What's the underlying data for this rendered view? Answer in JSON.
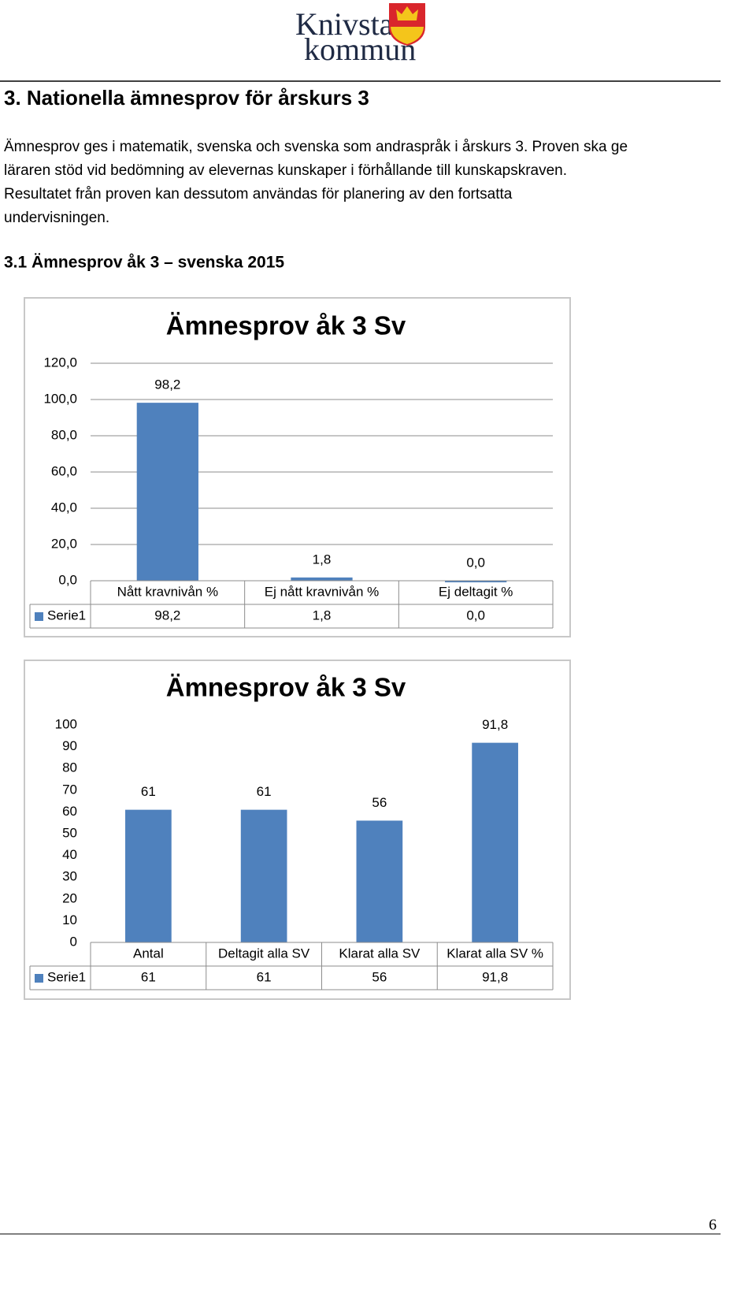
{
  "logo": {
    "line1": "Knivsta",
    "line2": "kommun"
  },
  "heading": "3. Nationella ämnesprov för årskurs 3",
  "paragraph": [
    "Ämnesprov ges i matematik, svenska och svenska som andraspråk i årskurs 3. Proven ska ge",
    "läraren stöd vid bedömning av elevernas kunskaper i förhållande till kunskapskraven.",
    "Resultatet från proven kan dessutom användas för planering av den fortsatta",
    "undervisningen."
  ],
  "subheading": "3.1 Ämnesprov åk 3 – svenska 2015",
  "chart_data": [
    {
      "type": "bar",
      "title": "Ämnesprov åk 3 Sv",
      "categories": [
        "Nått kravnivån %",
        "Ej nått kravnivån %",
        "Ej deltagit %"
      ],
      "series": [
        {
          "name": "Serie1",
          "color": "#4f81bd",
          "values": [
            98.2,
            1.8,
            0
          ],
          "value_labels": [
            "98,2",
            "1,8",
            "0,0"
          ]
        }
      ],
      "ylim": [
        0,
        120
      ],
      "yticks": [
        {
          "value": 0,
          "label": "0,0"
        },
        {
          "value": 20,
          "label": "20,0"
        },
        {
          "value": 40,
          "label": "40,0"
        },
        {
          "value": 60,
          "label": "60,0"
        },
        {
          "value": 80,
          "label": "80,0"
        },
        {
          "value": 100,
          "label": "100,0"
        },
        {
          "value": 120,
          "label": "120,0"
        }
      ],
      "grid": true
    },
    {
      "type": "bar",
      "title": "Ämnesprov åk 3 Sv",
      "categories": [
        "Antal",
        "Deltagit alla SV",
        "Klarat alla SV",
        "Klarat alla SV %"
      ],
      "series": [
        {
          "name": "Serie1",
          "color": "#4f81bd",
          "values": [
            61,
            61,
            56,
            91.8
          ],
          "value_labels": [
            "61",
            "61",
            "56",
            "91,8"
          ]
        }
      ],
      "ylim": [
        0,
        100
      ],
      "yticks": [
        0,
        10,
        20,
        30,
        40,
        50,
        60,
        70,
        80,
        90,
        100
      ],
      "grid": false
    }
  ],
  "page_number": "6"
}
